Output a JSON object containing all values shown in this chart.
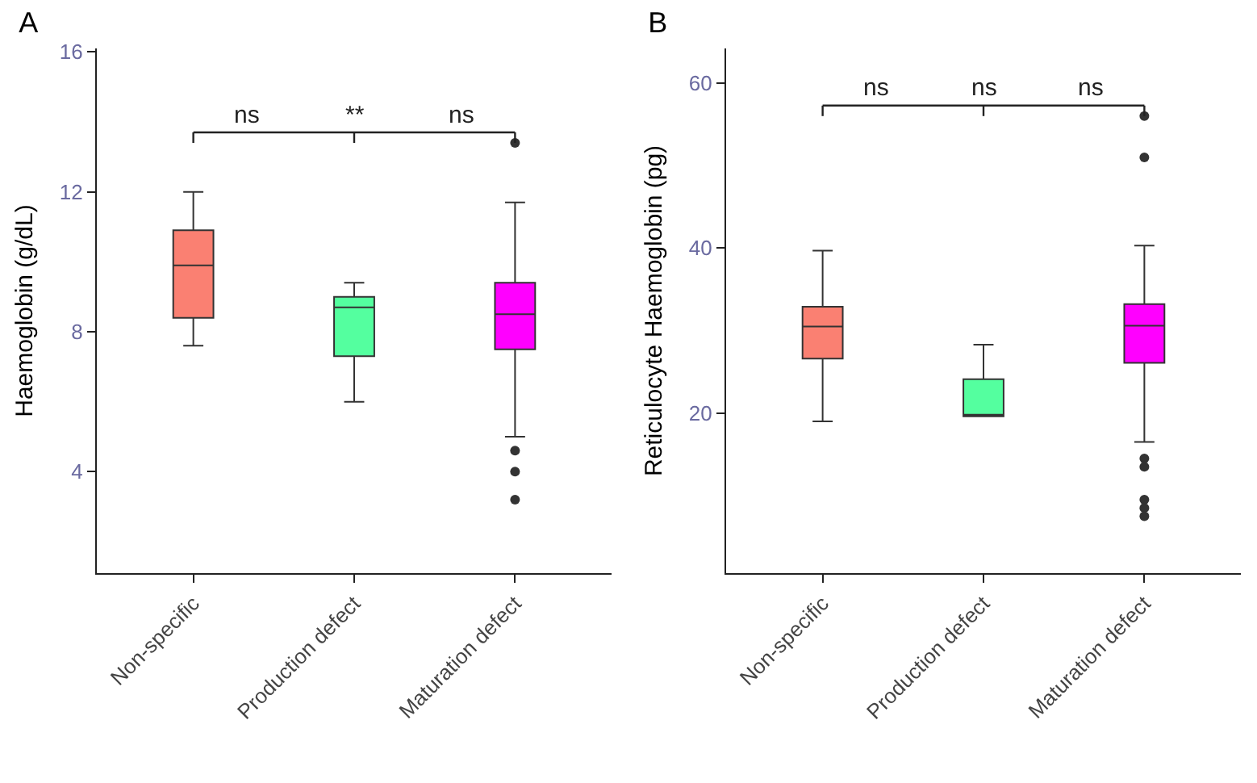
{
  "chart_data": [
    {
      "type": "box",
      "title": "A",
      "ylabel": "Haemoglobin (g/dL)",
      "categories": [
        "Non-specific",
        "Production defect",
        "Maturation defect"
      ],
      "colors": [
        "#fa8072",
        "#54ff9f",
        "#ff00ff"
      ],
      "boxes": [
        {
          "low": 7.6,
          "q1": 8.4,
          "median": 9.9,
          "q3": 10.9,
          "high": 12.0
        },
        {
          "low": 6.0,
          "q1": 7.3,
          "median": 8.7,
          "q3": 9.0,
          "high": 9.4
        },
        {
          "low": 5.0,
          "q1": 7.5,
          "median": 8.5,
          "q3": 9.4,
          "high": 11.7,
          "outliers": [
            13.4,
            4.6,
            4.0,
            3.2
          ]
        }
      ],
      "ylim": [
        1.1,
        16.1
      ],
      "yticks": [
        4,
        8,
        12,
        16
      ],
      "annotations": [
        "ns",
        "**",
        "ns"
      ]
    },
    {
      "type": "box",
      "title": "B",
      "ylabel": "Reticulocyte Haemoglobin (pg)",
      "categories": [
        "Non-specific",
        "Production defect",
        "Maturation defect"
      ],
      "colors": [
        "#fa8072",
        "#54ff9f",
        "#ff00ff"
      ],
      "boxes": [
        {
          "low": 19.0,
          "q1": 26.6,
          "median": 30.5,
          "q3": 32.9,
          "high": 39.7
        },
        {
          "low": 19.6,
          "q1": 19.6,
          "median": 19.8,
          "q3": 24.1,
          "high": 28.3
        },
        {
          "low": 16.5,
          "q1": 26.1,
          "median": 30.6,
          "q3": 33.2,
          "high": 40.3,
          "outliers": [
            56,
            51,
            14.5,
            13.5,
            9.5,
            8.5,
            7.5
          ]
        }
      ],
      "ylim": [
        0.6,
        64.2
      ],
      "yticks": [
        20,
        40,
        60
      ],
      "annotations": [
        "ns",
        "ns",
        "ns"
      ]
    }
  ]
}
